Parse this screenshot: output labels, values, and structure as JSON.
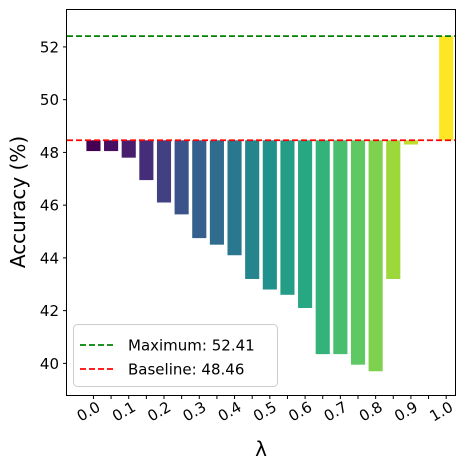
{
  "chart_data": {
    "type": "bar",
    "title": "",
    "xlabel": "λ",
    "ylabel": "Accuracy (%)",
    "xtick_labels": [
      "0.0",
      "0.1",
      "0.2",
      "0.3",
      "0.4",
      "0.5",
      "0.6",
      "0.7",
      "0.8",
      "0.9",
      "1.0"
    ],
    "ytick_labels": [
      "40",
      "42",
      "44",
      "46",
      "48",
      "50",
      "52"
    ],
    "yticks": [
      40,
      42,
      44,
      46,
      48,
      50,
      52
    ],
    "ylim": [
      38.8,
      53.4
    ],
    "xlim": [
      -0.075,
      1.025
    ],
    "baseline": 48.46,
    "x": [
      0.0,
      0.05,
      0.1,
      0.15,
      0.2,
      0.25,
      0.3,
      0.35,
      0.4,
      0.45,
      0.5,
      0.55,
      0.6,
      0.65,
      0.7,
      0.75,
      0.8,
      0.85,
      0.9,
      0.95,
      1.0
    ],
    "values": [
      48.05,
      48.05,
      47.8,
      46.95,
      46.1,
      45.65,
      44.75,
      44.5,
      44.1,
      43.2,
      42.8,
      42.6,
      42.1,
      40.35,
      40.35,
      39.95,
      39.7,
      43.2,
      48.3,
      48.46,
      52.41
    ],
    "colormap": "viridis",
    "grid": false,
    "legend_position": "lower-left",
    "reference_lines": [
      {
        "label": "Maximum: 52.41",
        "value": 52.41,
        "color": "#008000",
        "style": "dashed"
      },
      {
        "label": "Baseline: 48.46",
        "value": 48.46,
        "color": "#ff0000",
        "style": "dashed"
      }
    ]
  }
}
